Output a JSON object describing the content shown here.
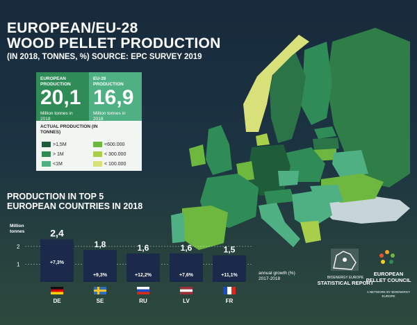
{
  "title_line1": "EUROPEAN/EU-28",
  "title_line2": "WOOD PELLET PRODUCTION",
  "subtitle": "(IN 2018, TONNES, %) SOURCE: EPC SURVEY 2019",
  "european_production": {
    "label": "EUROPEAN PRODUCTION",
    "value": "20,1",
    "unit": "Million tonnes in 2018"
  },
  "eu28_production": {
    "label": "EU-28 PRODUCTION",
    "value": "16,9",
    "unit": "Million tonnes in 2018"
  },
  "legend": {
    "title": "ACTUAL PRODUCTION (IN TONNES)",
    "items": [
      {
        "label": ">1,5M",
        "color": "#1f5c3a"
      },
      {
        "label": "> 1M",
        "color": "#2f8c57"
      },
      {
        "label": "<1M",
        "color": "#4fb083"
      },
      {
        "label": "<600.000",
        "color": "#6fb83f"
      },
      {
        "label": "< 300.000",
        "color": "#a9cf4a"
      },
      {
        "label": "< 100.000",
        "color": "#d8e07a"
      }
    ]
  },
  "top5_title_line1": "PRODUCTION IN TOP 5",
  "top5_title_line2": "EUROPEAN COUNTRIES IN 2018",
  "y_axis_label": "Million tonnes",
  "growth_label": "annual growth (%) 2017-2018",
  "logos": {
    "bioenergy_small": "BIOENERGY EUROPE",
    "bioenergy_main": "STATISTICAL REPORT",
    "epc_main": "EUROPEAN PELLET COUNCIL",
    "epc_small": "A NETWORK BY BIOENERGY EUROPE"
  },
  "chart_data": {
    "type": "bar",
    "title": "PRODUCTION IN TOP 5 EUROPEAN COUNTRIES IN 2018",
    "ylabel": "Million tonnes",
    "xlabel": "",
    "ylim": [
      0,
      2.5
    ],
    "yticks": [
      1,
      2
    ],
    "categories": [
      "DE",
      "SE",
      "RU",
      "LV",
      "FR"
    ],
    "values": [
      2.4,
      1.8,
      1.6,
      1.6,
      1.5
    ],
    "value_labels": [
      "2,4",
      "1,8",
      "1,6",
      "1,6",
      "1,5"
    ],
    "growth_labels": [
      "+7,3%",
      "+9,3%",
      "+12,2%",
      "+7,6%",
      "+11,1%"
    ],
    "bar_color": "#1b2a4a",
    "flags": [
      {
        "country": "DE",
        "stripes": [
          "#111111",
          "#dd0000",
          "#ffce00"
        ],
        "dir": "h"
      },
      {
        "country": "SE",
        "type": "nordic",
        "bg": "#2f6fbf",
        "cross": "#f7c52a"
      },
      {
        "country": "RU",
        "stripes": [
          "#ffffff",
          "#1c49c4",
          "#d52b1e"
        ],
        "dir": "h"
      },
      {
        "country": "LV",
        "stripes": [
          "#9e3039",
          "#ffffff",
          "#9e3039"
        ],
        "dir": "h"
      },
      {
        "country": "FR",
        "stripes": [
          "#1c49c4",
          "#ffffff",
          "#d52b1e"
        ],
        "dir": "v"
      }
    ]
  }
}
